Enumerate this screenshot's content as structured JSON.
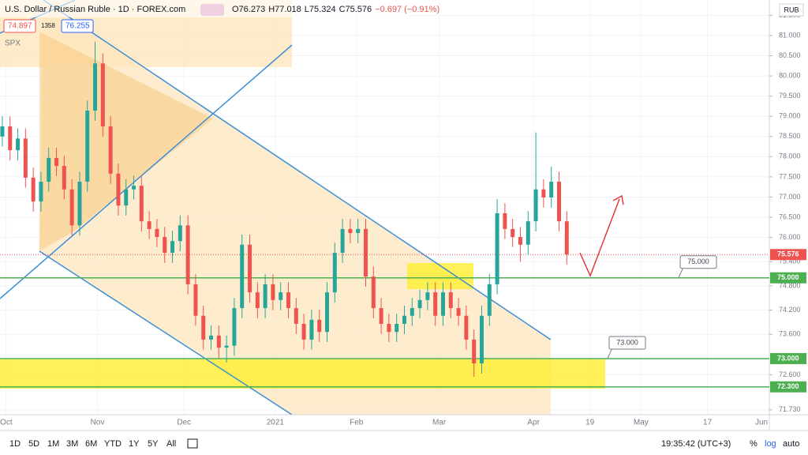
{
  "header": {
    "title": "U.S. Dollar / Russian Ruble · 1D · FOREX.com",
    "ohlc": [
      "O76.273",
      "H77.018",
      "L75.324",
      "C75.576",
      "−0.697 (−0.91%)"
    ],
    "sell": "74.897",
    "spread": "1358",
    "buy": "76.255",
    "overlay": "SPX"
  },
  "chart_data": {
    "type": "candlestick",
    "currency": "RUB",
    "up_color": "#26a69a",
    "down_color": "#ef5350",
    "open": [
      78.5,
      78.75,
      78.16,
      78.45,
      77.48,
      76.89,
      77.38,
      77.97,
      77.77,
      77.19,
      76.3,
      77.38,
      79.14,
      80.31,
      78.75,
      77.58,
      76.79,
      77.19,
      77.28,
      76.4,
      76.21,
      76.01,
      75.62,
      75.91,
      76.3,
      74.84,
      74.06,
      73.47,
      73.57,
      73.27,
      73.32,
      74.25,
      75.82,
      74.64,
      74.25,
      74.84,
      74.45,
      74.64,
      74.25,
      73.86,
      73.47,
      73.96,
      73.66,
      74.64,
      75.62,
      76.21,
      76.11,
      76.21,
      75.03,
      74.25,
      73.86,
      73.66,
      73.86,
      74.06,
      74.25,
      74.45,
      74.64,
      74.06,
      74.64,
      74.25,
      74.06,
      73.47,
      72.88,
      74.06,
      74.84,
      76.6,
      76.21,
      76.01,
      75.82,
      76.4,
      77.19,
      76.99,
      77.38,
      76.4
    ],
    "high": [
      79.0,
      79.0,
      78.7,
      78.7,
      77.73,
      77.63,
      78.22,
      78.22,
      78.02,
      77.44,
      77.63,
      79.39,
      80.85,
      80.56,
      79.0,
      77.83,
      77.44,
      77.53,
      77.53,
      76.65,
      76.46,
      76.26,
      76.16,
      76.55,
      76.55,
      75.09,
      74.31,
      73.82,
      73.82,
      73.57,
      74.5,
      76.07,
      76.07,
      74.89,
      75.09,
      75.09,
      74.89,
      74.89,
      74.5,
      74.11,
      74.21,
      74.21,
      74.89,
      75.87,
      76.46,
      76.46,
      76.46,
      76.46,
      75.28,
      74.5,
      74.11,
      74.11,
      74.31,
      74.5,
      74.7,
      74.89,
      74.89,
      74.89,
      74.89,
      74.5,
      74.31,
      73.72,
      74.31,
      75.09,
      76.95,
      76.85,
      76.46,
      76.26,
      76.65,
      78.6,
      77.44,
      77.75,
      77.63,
      76.65
    ],
    "low": [
      78.25,
      77.91,
      77.91,
      77.23,
      76.64,
      76.64,
      77.13,
      77.52,
      76.94,
      76.05,
      76.05,
      77.13,
      78.89,
      78.5,
      77.33,
      76.54,
      76.54,
      76.94,
      76.15,
      75.96,
      75.76,
      75.37,
      75.37,
      75.66,
      74.59,
      73.81,
      73.22,
      73.22,
      73.02,
      72.9,
      73.07,
      74.0,
      74.39,
      74.0,
      74.0,
      74.2,
      74.2,
      74.0,
      73.61,
      73.22,
      73.22,
      73.41,
      73.41,
      74.39,
      75.37,
      75.86,
      75.86,
      74.78,
      74.0,
      73.61,
      73.41,
      73.41,
      73.61,
      73.81,
      74.0,
      74.2,
      73.81,
      73.81,
      74.0,
      73.81,
      73.22,
      72.55,
      72.63,
      73.81,
      74.59,
      75.96,
      75.76,
      75.4,
      75.57,
      76.15,
      76.74,
      76.74,
      76.15,
      75.33
    ],
    "close": [
      78.75,
      78.16,
      78.45,
      77.48,
      76.89,
      77.38,
      77.97,
      77.77,
      77.19,
      76.3,
      77.38,
      79.14,
      80.31,
      78.75,
      77.58,
      76.79,
      77.19,
      77.28,
      76.4,
      76.21,
      76.01,
      75.62,
      75.91,
      76.3,
      74.84,
      74.06,
      73.47,
      73.57,
      73.27,
      73.32,
      74.25,
      75.82,
      74.64,
      74.25,
      74.84,
      74.45,
      74.64,
      74.25,
      73.86,
      73.47,
      73.96,
      73.66,
      74.64,
      75.62,
      76.21,
      76.11,
      76.21,
      75.03,
      74.25,
      73.86,
      73.66,
      73.86,
      74.06,
      74.25,
      74.45,
      74.64,
      74.06,
      74.64,
      74.25,
      74.06,
      73.47,
      72.88,
      74.06,
      74.84,
      76.6,
      76.21,
      76.01,
      75.82,
      76.4,
      77.19,
      76.99,
      77.38,
      76.4,
      75.58
    ],
    "ylim": [
      71.61,
      81.88
    ],
    "yticks": [
      {
        "value": 81.5,
        "label": "81.500"
      },
      {
        "value": 81,
        "label": "81.000"
      },
      {
        "value": 80.5,
        "label": "80.500"
      },
      {
        "value": 80,
        "label": "80.000"
      },
      {
        "value": 79.5,
        "label": "79.500"
      },
      {
        "value": 79,
        "label": "79.000"
      },
      {
        "value": 78.5,
        "label": "78.500"
      },
      {
        "value": 78,
        "label": "78.000"
      },
      {
        "value": 77.5,
        "label": "77.500"
      },
      {
        "value": 77,
        "label": "77.000"
      },
      {
        "value": 76.5,
        "label": "76.500"
      },
      {
        "value": 76,
        "label": "76.000"
      },
      {
        "value": 75.4,
        "label": "75.400"
      },
      {
        "value": 74.8,
        "label": "74.800"
      },
      {
        "value": 74.2,
        "label": "74.200"
      },
      {
        "value": 73.6,
        "label": "73.600"
      },
      {
        "value": 72.6,
        "label": "72.600"
      },
      {
        "value": 71.73,
        "label": "71.730"
      }
    ],
    "xlim": [
      -0.3,
      99.2
    ],
    "xticks": [
      {
        "value": 0.5,
        "label": "Oct"
      },
      {
        "value": 12.3,
        "label": "Nov"
      },
      {
        "value": 23.5,
        "label": "Dec"
      },
      {
        "value": 35.3,
        "label": "2021"
      },
      {
        "value": 45.8,
        "label": "Feb"
      },
      {
        "value": 56.5,
        "label": "Mar"
      },
      {
        "value": 68.7,
        "label": "Apr"
      },
      {
        "value": 76,
        "label": "19"
      },
      {
        "value": 82.6,
        "label": "May"
      },
      {
        "value": 91.2,
        "label": "17"
      },
      {
        "value": 99.2,
        "label": "Jun"
      }
    ],
    "last_price": {
      "value": 75.576,
      "label": "75.576",
      "color": "#ef5350"
    },
    "levels": [
      {
        "value": 75,
        "label": "75.000",
        "color": "#4caf50"
      },
      {
        "value": 73,
        "label": "73.000",
        "color": "#4caf50"
      },
      {
        "value": 72.3,
        "label": "72.300",
        "color": "#4caf50"
      }
    ],
    "callouts": [
      {
        "value": 75,
        "label": "75.000"
      },
      {
        "value": 73,
        "label": "73.000"
      }
    ]
  },
  "toolbar": {
    "ranges": [
      "1D",
      "5D",
      "1M",
      "3M",
      "6M",
      "YTD",
      "1Y",
      "5Y",
      "All"
    ],
    "time": "19:35:42 (UTC+3)",
    "percent": "%",
    "log": "log",
    "auto": "auto"
  }
}
